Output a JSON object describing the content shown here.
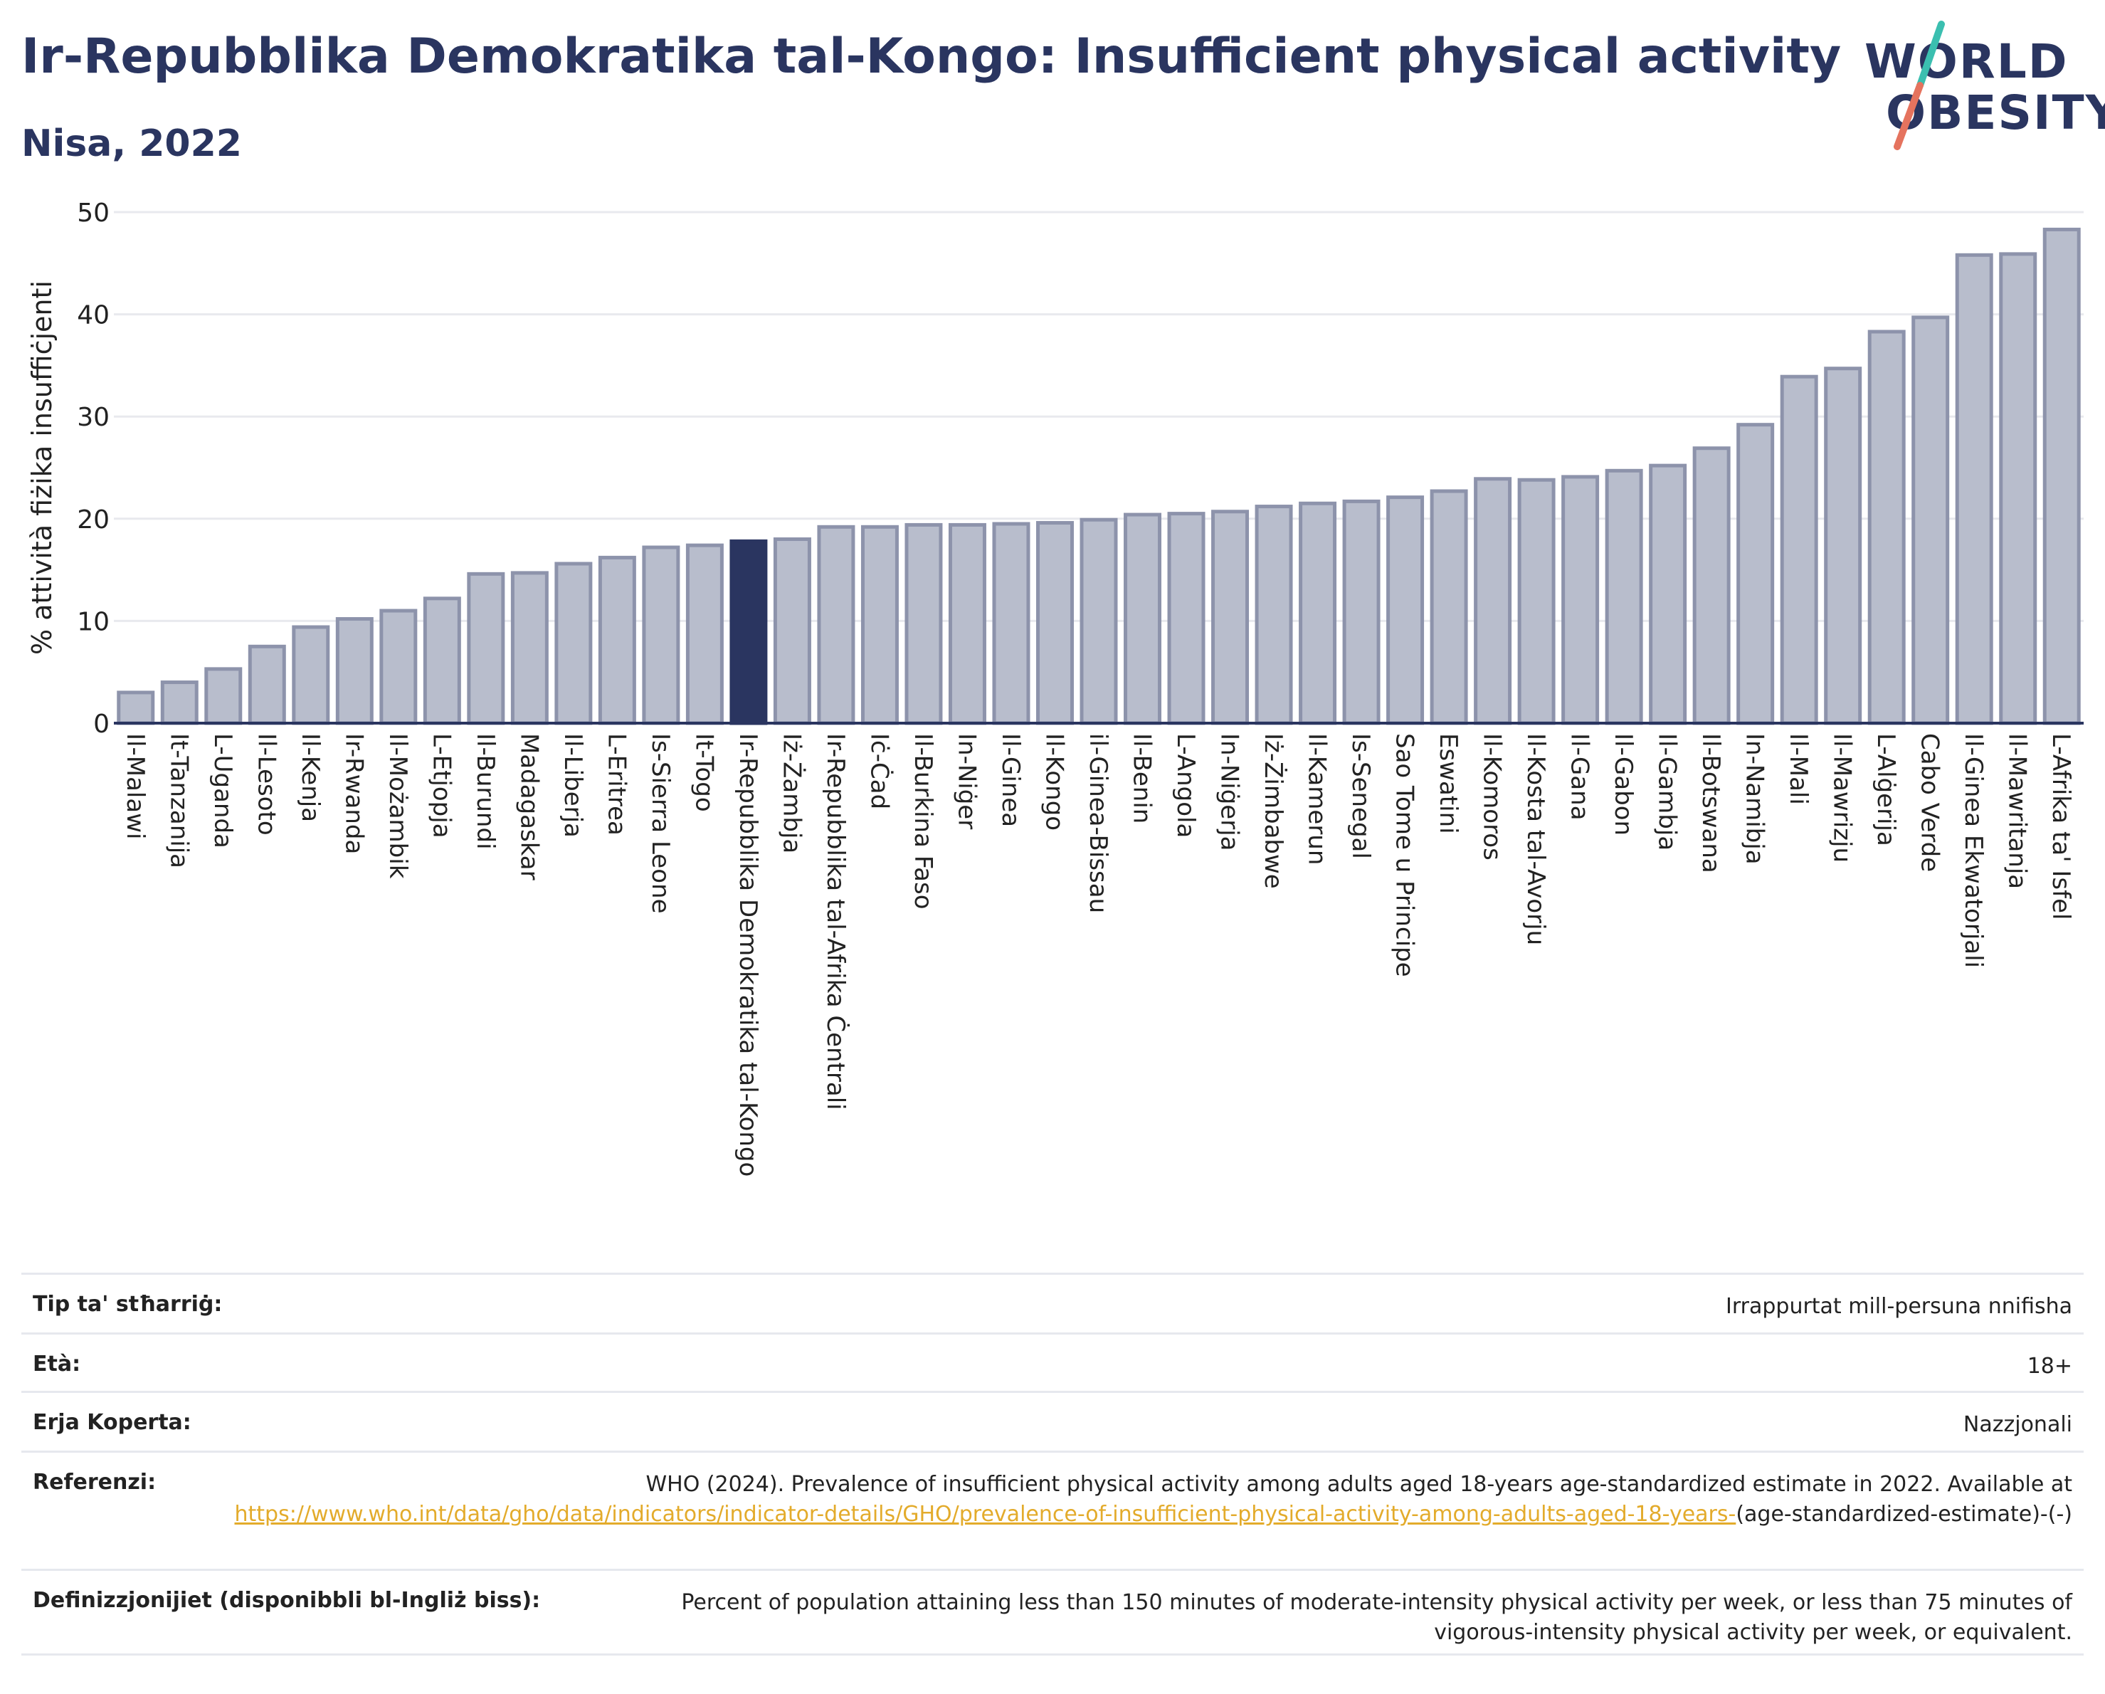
{
  "header": {
    "title": "Ir-Repubblika Demokratika tal-Kongo: Insufficient physical activity",
    "subtitle": "Nisa, 2022"
  },
  "logo": {
    "line1": "WORLD",
    "line2": "OBESITY"
  },
  "colors": {
    "highlight": "#2a3560",
    "bar_fill": "#b8bdcc",
    "bar_stroke": "#8d93ab",
    "grid": "#e8e9ee",
    "axis": "#2a3560",
    "link": "#e3ab2b",
    "logo_slash_teal": "#3bbfb0",
    "logo_slash_coral": "#e5735e"
  },
  "chart_data": {
    "type": "bar",
    "ylabel": "% attività fiżika insuffiċjenti",
    "ylim": [
      0,
      50
    ],
    "yticks": [
      0,
      10,
      20,
      30,
      40,
      50
    ],
    "grid": true,
    "highlight": "Ir-Repubblika Demokratika tal-Kongo",
    "categories": [
      "Il-Malawi",
      "It-Tanzanija",
      "L-Uganda",
      "Il-Lesoto",
      "Il-Kenja",
      "Ir-Rwanda",
      "Il-Możambik",
      "L-Etjopja",
      "Il-Burundi",
      "Madagaskar",
      "Il-Liberja",
      "L-Eritrea",
      "Is-Sierra Leone",
      "It-Togo",
      "Ir-Repubblika Demokratika tal-Kongo",
      "Iż-Żambja",
      "Ir-Repubblika tal-Afrika Ċentrali",
      "Iċ-Ċad",
      "Il-Burkina Faso",
      "In-Niġer",
      "Il-Ginea",
      "Il-Kongo",
      "il-Ginea-Bissau",
      "Il-Benin",
      "L-Angola",
      "In-Niġerja",
      "Iż-Żimbabwe",
      "Il-Kamerun",
      "Is-Senegal",
      "Sao Tome u Principe",
      "Eswatini",
      "Il-Komoros",
      "Il-Kosta tal-Avorju",
      "Il-Gana",
      "Il-Gabon",
      "Il-Gambja",
      "Il-Botswana",
      "In-Namibja",
      "Il-Mali",
      "Il-Mawrizju",
      "L-Alġerija",
      "Cabo Verde",
      "Il-Ginea Ekwatorjali",
      "Il-Mawritanja",
      "L-Afrika ta' Isfel"
    ],
    "values": [
      3.0,
      4.0,
      5.3,
      7.5,
      9.4,
      10.2,
      11.0,
      12.2,
      14.6,
      14.7,
      15.6,
      16.2,
      17.2,
      17.4,
      17.8,
      18.0,
      19.2,
      19.2,
      19.4,
      19.4,
      19.5,
      19.6,
      19.9,
      20.4,
      20.5,
      20.7,
      21.2,
      21.5,
      21.7,
      22.1,
      22.7,
      23.9,
      23.8,
      24.1,
      24.7,
      25.2,
      26.9,
      29.2,
      33.9,
      34.7,
      38.3,
      39.7,
      45.8,
      45.9,
      48.3
    ]
  },
  "meta": {
    "survey_label": "Tip ta' stħarriġ:",
    "survey_value": "Irrappurtat mill-persuna nnifisha",
    "age_label": "Età:",
    "age_value": "18+",
    "area_label": "Erja Koperta:",
    "area_value": "Nazzjonali",
    "ref_label": "Referenzi:",
    "ref_text": "WHO (2024). Prevalence of insufficient physical activity among adults aged 18-years age-standardized estimate in 2022. Available at",
    "ref_link": "https://www.who.int/data/gho/data/indicators/indicator-details/GHO/prevalence-of-insufficient-physical-activity-among-adults-aged-18-years-",
    "ref_tail": "(age-standardized-estimate)-(-)",
    "def_label": "Definizzjonijiet (disponibbli bl-Ingliż biss):",
    "def_value": "Percent of population attaining less than 150 minutes of moderate-intensity physical activity per week, or less than 75 minutes of vigorous-intensity physical activity per week, or equivalent."
  }
}
